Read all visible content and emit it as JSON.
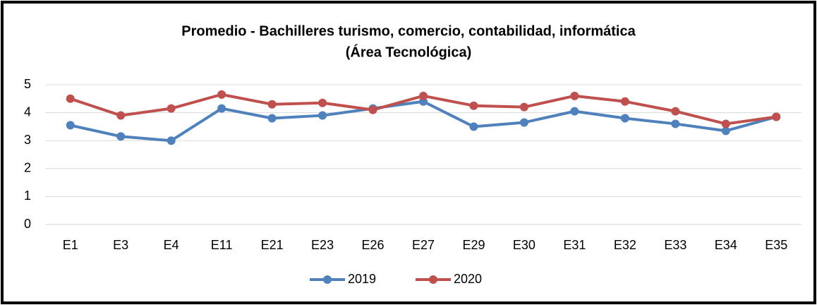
{
  "chart_data": {
    "type": "line",
    "title": "Promedio - Bachilleres turismo, comercio, contabilidad, informática",
    "subtitle": "(Área Tecnológica)",
    "categories": [
      "E1",
      "E3",
      "E4",
      "E11",
      "E21",
      "E23",
      "E26",
      "E27",
      "E29",
      "E30",
      "E31",
      "E32",
      "E33",
      "E34",
      "E35"
    ],
    "series": [
      {
        "name": "2019",
        "color": "#4f81bd",
        "values": [
          3.55,
          3.15,
          3.0,
          4.15,
          3.8,
          3.9,
          4.15,
          4.4,
          3.5,
          3.65,
          4.05,
          3.8,
          3.6,
          3.35,
          3.85
        ]
      },
      {
        "name": "2020",
        "color": "#c0504d",
        "values": [
          4.5,
          3.9,
          4.15,
          4.65,
          4.3,
          4.35,
          4.1,
          4.6,
          4.25,
          4.2,
          4.6,
          4.4,
          4.05,
          3.6,
          3.85
        ]
      }
    ],
    "ylim": [
      0,
      5
    ],
    "yticks": [
      0,
      1,
      2,
      3,
      4,
      5
    ],
    "grid": true,
    "legend": "bottom"
  }
}
